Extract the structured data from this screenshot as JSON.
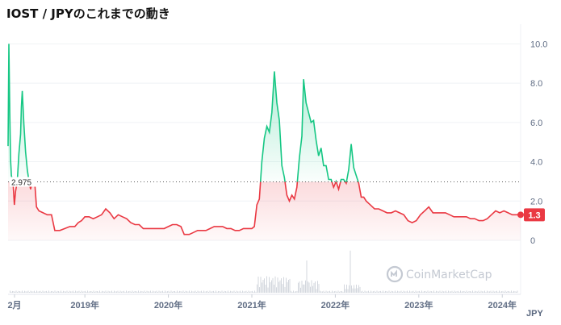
{
  "title": "IOST / JPYのこれまでの動き",
  "watermark": "CoinMarketCap",
  "currency": "JPY",
  "chart_data": {
    "type": "area",
    "title": "IOST / JPYのこれまでの動き",
    "y_ticks": [
      "10.0",
      "8.0",
      "6.0",
      "4.0",
      "2.0",
      "0"
    ],
    "x_ticks": [
      "2月",
      "2019年",
      "2020年",
      "2021年",
      "2022年",
      "2023年",
      "2024年"
    ],
    "ylim": [
      0,
      11
    ],
    "reference_value": 2.975,
    "reference_label": "2.975",
    "current_value": 1.3,
    "current_label": "1.3",
    "colors": {
      "above": "#16c784",
      "below": "#ea3943",
      "reference": "#5a5a5a"
    },
    "grid": true,
    "series": [
      {
        "points": [
          [
            2018.08,
            4.8
          ],
          [
            2018.09,
            10.0
          ],
          [
            2018.1,
            6.5
          ],
          [
            2018.11,
            4.1
          ],
          [
            2018.12,
            3.3
          ],
          [
            2018.14,
            2.9
          ],
          [
            2018.155,
            1.8
          ],
          [
            2018.17,
            2.5
          ],
          [
            2018.19,
            3.0
          ],
          [
            2018.21,
            4.4
          ],
          [
            2018.23,
            5.4
          ],
          [
            2018.24,
            6.8
          ],
          [
            2018.25,
            7.6
          ],
          [
            2018.27,
            5.9
          ],
          [
            2018.29,
            4.5
          ],
          [
            2018.31,
            3.6
          ],
          [
            2018.33,
            3.0
          ],
          [
            2018.35,
            2.6
          ],
          [
            2018.37,
            3.0
          ],
          [
            2018.4,
            2.9
          ],
          [
            2018.42,
            1.7
          ],
          [
            2018.45,
            1.5
          ],
          [
            2018.5,
            1.4
          ],
          [
            2018.55,
            1.3
          ],
          [
            2018.6,
            1.3
          ],
          [
            2018.64,
            0.5
          ],
          [
            2018.7,
            0.5
          ],
          [
            2018.76,
            0.6
          ],
          [
            2018.82,
            0.7
          ],
          [
            2018.88,
            0.7
          ],
          [
            2018.92,
            0.9
          ],
          [
            2018.96,
            1.0
          ],
          [
            2019.0,
            1.2
          ],
          [
            2019.05,
            1.2
          ],
          [
            2019.1,
            1.1
          ],
          [
            2019.15,
            1.2
          ],
          [
            2019.2,
            1.3
          ],
          [
            2019.25,
            1.6
          ],
          [
            2019.3,
            1.4
          ],
          [
            2019.35,
            1.1
          ],
          [
            2019.4,
            1.3
          ],
          [
            2019.45,
            1.2
          ],
          [
            2019.5,
            1.1
          ],
          [
            2019.55,
            0.9
          ],
          [
            2019.6,
            0.8
          ],
          [
            2019.65,
            0.8
          ],
          [
            2019.7,
            0.6
          ],
          [
            2019.75,
            0.6
          ],
          [
            2019.8,
            0.6
          ],
          [
            2019.85,
            0.6
          ],
          [
            2019.9,
            0.6
          ],
          [
            2019.95,
            0.6
          ],
          [
            2020.0,
            0.7
          ],
          [
            2020.05,
            0.8
          ],
          [
            2020.1,
            0.8
          ],
          [
            2020.15,
            0.7
          ],
          [
            2020.19,
            0.3
          ],
          [
            2020.25,
            0.3
          ],
          [
            2020.3,
            0.4
          ],
          [
            2020.35,
            0.5
          ],
          [
            2020.4,
            0.5
          ],
          [
            2020.45,
            0.5
          ],
          [
            2020.5,
            0.6
          ],
          [
            2020.55,
            0.7
          ],
          [
            2020.6,
            0.7
          ],
          [
            2020.65,
            0.7
          ],
          [
            2020.7,
            0.6
          ],
          [
            2020.75,
            0.6
          ],
          [
            2020.8,
            0.5
          ],
          [
            2020.85,
            0.5
          ],
          [
            2020.9,
            0.6
          ],
          [
            2020.95,
            0.6
          ],
          [
            2021.0,
            0.6
          ],
          [
            2021.03,
            0.7
          ],
          [
            2021.06,
            1.8
          ],
          [
            2021.09,
            2.1
          ],
          [
            2021.12,
            4.0
          ],
          [
            2021.15,
            5.2
          ],
          [
            2021.18,
            5.8
          ],
          [
            2021.21,
            5.5
          ],
          [
            2021.24,
            6.5
          ],
          [
            2021.27,
            8.6
          ],
          [
            2021.3,
            7.0
          ],
          [
            2021.33,
            6.1
          ],
          [
            2021.36,
            3.8
          ],
          [
            2021.39,
            3.2
          ],
          [
            2021.42,
            2.3
          ],
          [
            2021.45,
            2.0
          ],
          [
            2021.48,
            2.3
          ],
          [
            2021.51,
            2.1
          ],
          [
            2021.54,
            2.7
          ],
          [
            2021.57,
            4.2
          ],
          [
            2021.6,
            5.3
          ],
          [
            2021.62,
            8.2
          ],
          [
            2021.65,
            7.0
          ],
          [
            2021.68,
            6.5
          ],
          [
            2021.71,
            6.0
          ],
          [
            2021.74,
            6.1
          ],
          [
            2021.77,
            5.1
          ],
          [
            2021.8,
            4.3
          ],
          [
            2021.83,
            4.7
          ],
          [
            2021.86,
            3.8
          ],
          [
            2021.89,
            3.8
          ],
          [
            2021.92,
            3.1
          ],
          [
            2021.95,
            3.1
          ],
          [
            2021.98,
            2.7
          ],
          [
            2022.01,
            3.0
          ],
          [
            2022.04,
            2.6
          ],
          [
            2022.07,
            3.1
          ],
          [
            2022.1,
            3.1
          ],
          [
            2022.13,
            2.9
          ],
          [
            2022.16,
            3.6
          ],
          [
            2022.19,
            4.9
          ],
          [
            2022.22,
            3.7
          ],
          [
            2022.25,
            3.3
          ],
          [
            2022.28,
            2.9
          ],
          [
            2022.31,
            2.2
          ],
          [
            2022.34,
            2.2
          ],
          [
            2022.37,
            2.0
          ],
          [
            2022.42,
            1.8
          ],
          [
            2022.47,
            1.6
          ],
          [
            2022.52,
            1.6
          ],
          [
            2022.57,
            1.5
          ],
          [
            2022.62,
            1.4
          ],
          [
            2022.67,
            1.4
          ],
          [
            2022.72,
            1.5
          ],
          [
            2022.77,
            1.4
          ],
          [
            2022.82,
            1.3
          ],
          [
            2022.87,
            1.0
          ],
          [
            2022.92,
            0.9
          ],
          [
            2022.97,
            1.0
          ],
          [
            2023.02,
            1.3
          ],
          [
            2023.07,
            1.5
          ],
          [
            2023.12,
            1.7
          ],
          [
            2023.17,
            1.4
          ],
          [
            2023.22,
            1.4
          ],
          [
            2023.27,
            1.4
          ],
          [
            2023.32,
            1.4
          ],
          [
            2023.37,
            1.3
          ],
          [
            2023.42,
            1.2
          ],
          [
            2023.47,
            1.2
          ],
          [
            2023.52,
            1.2
          ],
          [
            2023.57,
            1.2
          ],
          [
            2023.62,
            1.1
          ],
          [
            2023.67,
            1.1
          ],
          [
            2023.72,
            1.0
          ],
          [
            2023.77,
            1.0
          ],
          [
            2023.82,
            1.1
          ],
          [
            2023.87,
            1.3
          ],
          [
            2023.92,
            1.5
          ],
          [
            2023.97,
            1.4
          ],
          [
            2024.02,
            1.5
          ],
          [
            2024.07,
            1.4
          ],
          [
            2024.12,
            1.3
          ],
          [
            2024.17,
            1.3
          ],
          [
            2024.22,
            1.3
          ]
        ]
      }
    ]
  }
}
